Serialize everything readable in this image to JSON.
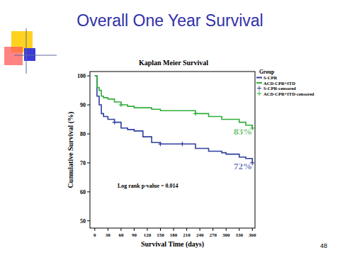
{
  "slide": {
    "title": "Overall One Year Survival",
    "page": "48"
  },
  "chart_data": {
    "type": "line",
    "title": "Kaplan Meier Survival",
    "x_label": "Survival Time (days)",
    "y_label": "Cumulative Survival (%)",
    "legend_title": "Group",
    "legend": "right",
    "annotations": [
      "Log rank p-value = 0.014",
      "83%",
      "72%"
    ],
    "x": [
      0,
      5,
      10,
      15,
      20,
      30,
      45,
      60,
      75,
      90,
      110,
      130,
      150,
      200,
      230,
      260,
      290,
      300,
      330,
      345,
      360
    ],
    "series": [
      {
        "name": "S-CPR",
        "color": "#2f3f9f",
        "line_style": "step",
        "values": [
          100,
          93,
          90,
          87,
          86,
          85,
          84,
          82,
          81.5,
          81,
          79,
          77,
          76.5,
          76.5,
          75,
          74,
          73.5,
          73,
          72,
          71.5,
          70
        ]
      },
      {
        "name": "ACD-CPR+ITD",
        "color": "#2fae3a",
        "line_style": "step",
        "values": [
          100,
          96,
          95,
          93,
          92.5,
          92,
          91,
          90,
          89.5,
          89,
          89,
          88.5,
          88,
          88,
          87,
          86,
          85,
          85,
          84,
          83,
          82
        ]
      },
      {
        "name": "S-CPR-censored",
        "color": "#2f3f9f",
        "type": "scatter",
        "marker": "plus",
        "values": [
          null,
          null,
          null,
          null,
          null,
          null,
          84,
          null,
          null,
          null,
          null,
          null,
          76.5,
          76.5,
          null,
          null,
          null,
          null,
          null,
          null,
          70
        ]
      },
      {
        "name": "ACD-CPR+ITD-censored",
        "color": "#2fae3a",
        "type": "scatter",
        "marker": "plus",
        "values": [
          null,
          null,
          null,
          null,
          null,
          null,
          null,
          90,
          null,
          null,
          null,
          null,
          null,
          null,
          87,
          null,
          null,
          null,
          null,
          null,
          82
        ]
      }
    ],
    "xlim": [
      -11,
      366
    ],
    "xticks": [
      0,
      30,
      60,
      90,
      120,
      150,
      180,
      210,
      240,
      270,
      300,
      330,
      360
    ],
    "ylim": [
      47.5,
      101.5
    ],
    "yticks": [
      50,
      60,
      70,
      80,
      90,
      100
    ],
    "grid": false
  }
}
